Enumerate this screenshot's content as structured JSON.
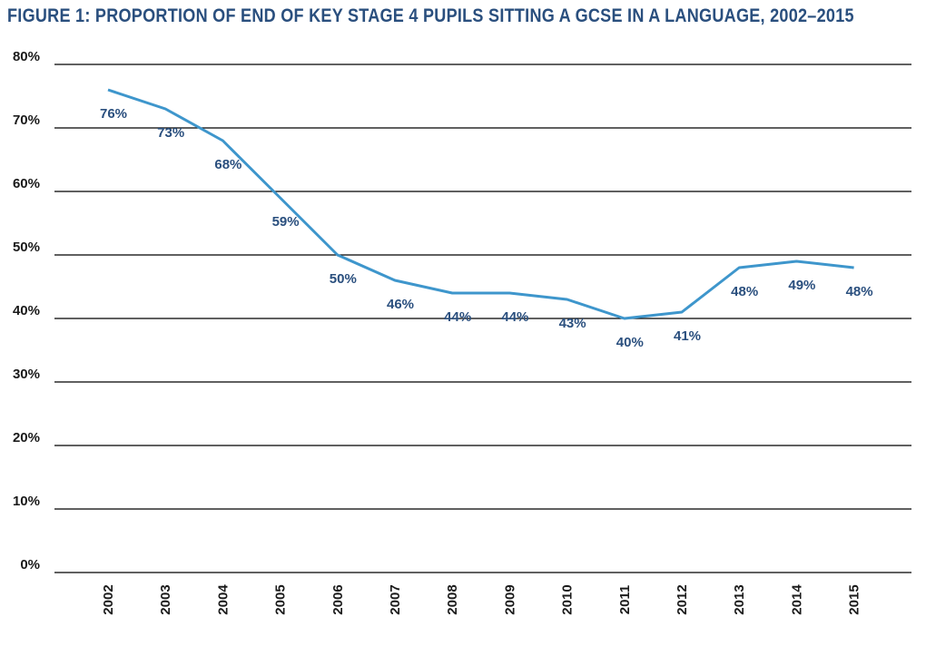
{
  "chart_data": {
    "type": "line",
    "title": "FIGURE 1: PROPORTION OF END OF KEY STAGE 4 PUPILS SITTING A GCSE IN A LANGUAGE, 2002–2015",
    "xlabel": "",
    "ylabel": "",
    "categories": [
      "2002",
      "2003",
      "2004",
      "2005",
      "2006",
      "2007",
      "2008",
      "2009",
      "2010",
      "2011",
      "2012",
      "2013",
      "2014",
      "2015"
    ],
    "series": [
      {
        "values": [
          76,
          73,
          68,
          59,
          50,
          46,
          44,
          44,
          43,
          40,
          41,
          48,
          49,
          48
        ],
        "labels": [
          "76%",
          "73%",
          "68%",
          "59%",
          "50%",
          "46%",
          "44%",
          "44%",
          "43%",
          "40%",
          "41%",
          "48%",
          "49%",
          "48%"
        ]
      }
    ],
    "ylim": [
      0,
      80
    ],
    "yticks": [
      0,
      10,
      20,
      30,
      40,
      50,
      60,
      70,
      80
    ],
    "ytick_labels": [
      "0%",
      "10%",
      "20%",
      "30%",
      "40%",
      "50%",
      "60%",
      "70%",
      "80%"
    ],
    "grid": true,
    "legend": "none",
    "line_color": "#3e96cc",
    "label_color": "#2a4f7e",
    "title_color": "#2a4f7e"
  }
}
